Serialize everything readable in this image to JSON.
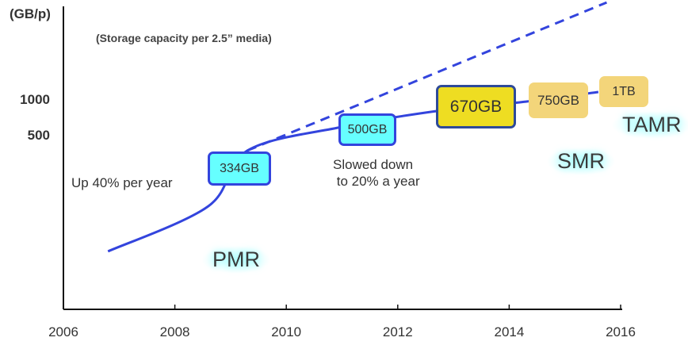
{
  "chart_data": {
    "type": "line",
    "ylabel": "(GB/p)",
    "subtitle": "(Storage capacity per 2.5” media)",
    "x_ticks": [
      "2006",
      "2008",
      "2010",
      "2012",
      "2014",
      "2016"
    ],
    "y_ticks": [
      "1000",
      "500"
    ],
    "xlim": [
      2006,
      2016
    ],
    "y_scale": "log",
    "series": [
      {
        "style": "solid",
        "color": "#3344dd",
        "x": [
          2006.8,
          2008.6,
          2009.3,
          2011.0,
          2012.7,
          2014.3,
          2015.6
        ],
        "y": [
          52,
          125,
          368,
          583,
          794,
          953,
          1148
        ]
      },
      {
        "style": "dashed",
        "color": "#3344dd",
        "x": [
          2009.3,
          2015.75
        ],
        "y": [
          368,
          6540
        ]
      }
    ],
    "milestones": [
      {
        "label": "334GB",
        "fill": "#66ffff",
        "border": "#3344dd"
      },
      {
        "label": "500GB",
        "fill": "#66ffff",
        "border": "#3344dd"
      },
      {
        "label": "670GB",
        "fill": "#eedd22",
        "border": "#2e4a99"
      },
      {
        "label": "750GB",
        "fill": "#f3d57a",
        "border": "#f3d57a"
      },
      {
        "label": "1TB",
        "fill": "#f3d57a",
        "border": "#f3d57a"
      }
    ],
    "annotations": [
      "Up 40% per year",
      "Slowed down\n to 20% a year"
    ],
    "technologies": [
      "PMR",
      "SMR",
      "TAMR"
    ],
    "grid": false
  }
}
